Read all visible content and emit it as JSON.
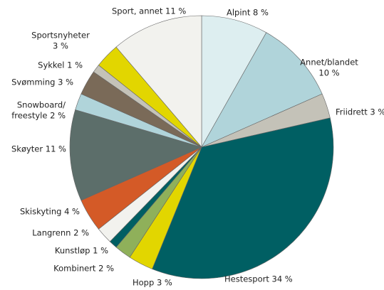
{
  "chart_data": {
    "type": "pie",
    "labels": [
      [
        "Alpint 8 %"
      ],
      [
        "Annet/blandet",
        "10 %"
      ],
      [
        "Friidrett 3 %"
      ],
      [
        "Hestesport 34 %"
      ],
      [
        "Hopp 3 %"
      ],
      [
        "Kombinert 2 %"
      ],
      [
        "Kunstløp 1 %"
      ],
      [
        "Langrenn 2 %"
      ],
      [
        "Skiskyting 4 %"
      ],
      [
        "Skøyter 11 %"
      ],
      [
        "Snowboard/",
        "freestyle 2 %"
      ],
      [
        "Svømming 3 %"
      ],
      [
        "Sykkel 1 %"
      ],
      [
        "Sportsnyheter",
        "3 %"
      ],
      [
        "Sport, annet 11 %"
      ]
    ],
    "values": [
      8,
      10,
      3,
      34,
      3,
      2,
      1,
      2,
      4,
      11,
      2,
      3,
      1,
      3,
      11
    ],
    "colors": [
      "#ddeef0",
      "#b0d4da",
      "#c4c2b8",
      "#005f63",
      "#e2d600",
      "#8fb05a",
      "#005f63",
      "#f2f2ee",
      "#d45a27",
      "#5c6e6a",
      "#b0d4da",
      "#7a6a58",
      "#c4c2b8",
      "#e2d600",
      "#f2f2ee"
    ]
  }
}
